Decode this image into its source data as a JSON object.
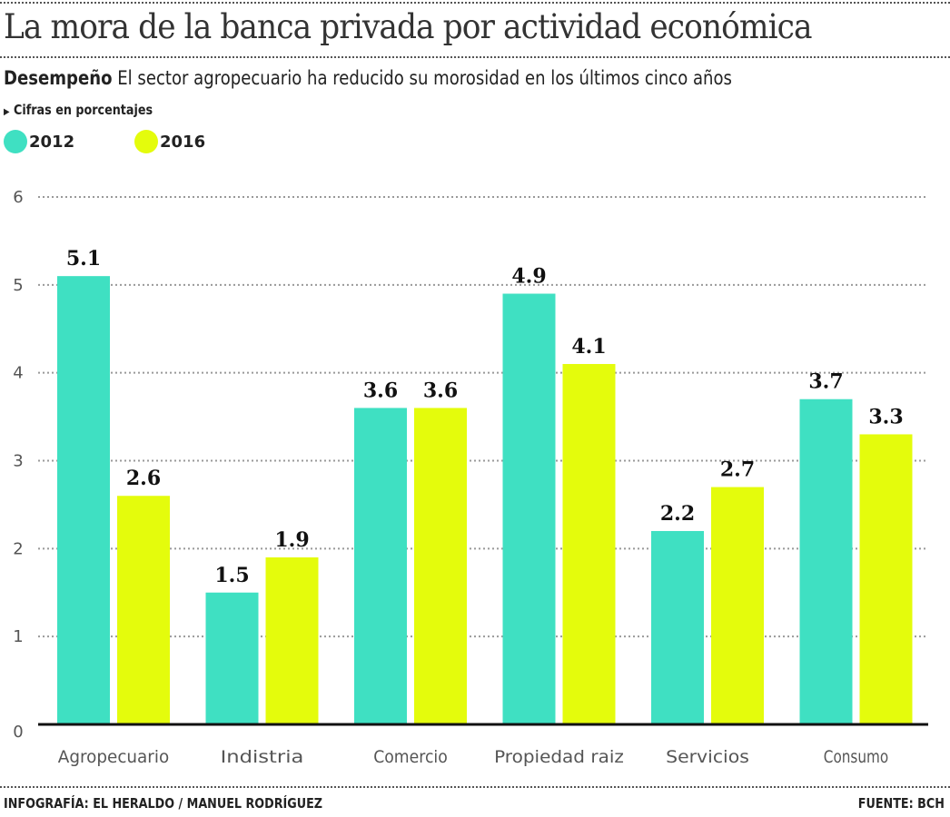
{
  "title": "La mora de la banca privada por actividad económica",
  "subtitle_lead": "Desempeño",
  "subtitle": "El sector agropecuario ha reducido su morosidad en los últimos cinco años",
  "note": "Cifras en porcentajes",
  "footer_credit": "INFOGRAFÍA: EL HERALDO / MANUEL RODRÍGUEZ",
  "footer_source": "FUENTE: BCH",
  "chart_data": {
    "type": "bar",
    "categories": [
      "Agropecuario",
      "Indistria",
      "Comercio",
      "Propiedad raiz",
      "Servicios",
      "Consumo"
    ],
    "series": [
      {
        "name": "2012",
        "color": "#3fe0c2",
        "values": [
          5.1,
          1.5,
          3.6,
          4.9,
          2.2,
          3.7
        ]
      },
      {
        "name": "2016",
        "color": "#e4fc0c",
        "values": [
          2.6,
          1.9,
          3.6,
          4.1,
          2.7,
          3.3
        ]
      }
    ],
    "ylim": [
      0,
      6
    ],
    "yticks": [
      "0",
      "1",
      "2",
      "3",
      "4",
      "5",
      "6"
    ],
    "grid": true,
    "legend": "top-left"
  }
}
